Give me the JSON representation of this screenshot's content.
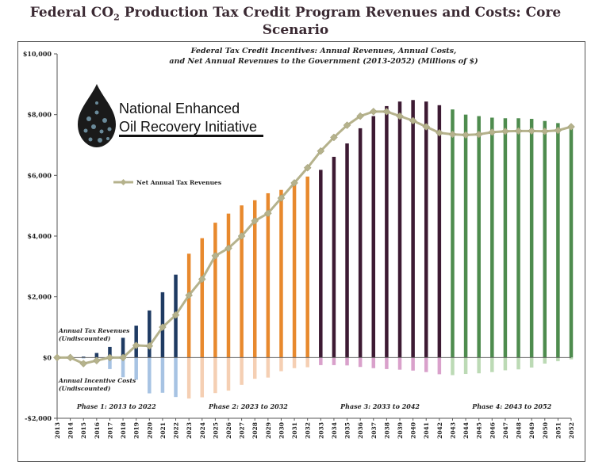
{
  "page_title": {
    "prefix": "Federal CO",
    "sub": "2",
    "suffix": " Production Tax Credit Program Revenues and Costs: Core Scenario"
  },
  "logo": {
    "line1": "National Enhanced",
    "line2": "Oil Recovery Initiative"
  },
  "chart_data": {
    "type": "bar",
    "title_line1": "Federal Tax Credit Incentives: Annual Revenues, Annual Costs,",
    "title_line2": "and Net Annual Revenues to the Government (2013-2052) (Millions of $)",
    "ylim": [
      -2000,
      10000
    ],
    "yticks": [
      -2000,
      0,
      2000,
      4000,
      6000,
      8000,
      10000
    ],
    "ytick_labels": [
      "-$2,000",
      "$0",
      "$2,000",
      "$4,000",
      "$6,000",
      "$8,000",
      "$10,000"
    ],
    "categories": [
      "2013",
      "2014",
      "2015",
      "2016",
      "2017",
      "2018",
      "2019",
      "2020",
      "2021",
      "2022",
      "2023",
      "2024",
      "2025",
      "2026",
      "2027",
      "2028",
      "2029",
      "2030",
      "2031",
      "2032",
      "2033",
      "2034",
      "2035",
      "2036",
      "2037",
      "2038",
      "2039",
      "2040",
      "2041",
      "2042",
      "2043",
      "2044",
      "2045",
      "2046",
      "2047",
      "2048",
      "2049",
      "2050",
      "2051",
      "2052"
    ],
    "series": [
      {
        "name": "Annual Tax Revenues (Undiscounted)",
        "values": [
          0,
          0,
          30,
          150,
          350,
          650,
          1050,
          1550,
          2150,
          2730,
          3420,
          3930,
          4440,
          4740,
          5010,
          5180,
          5410,
          5520,
          5770,
          5960,
          6180,
          6610,
          7050,
          7550,
          7950,
          8280,
          8430,
          8480,
          8430,
          8310,
          8170,
          8000,
          7950,
          7900,
          7880,
          7880,
          7860,
          7790,
          7720,
          7640
        ]
      },
      {
        "name": "Annual Incentive Costs (Undiscounted)",
        "values": [
          0,
          0,
          -30,
          -160,
          -380,
          -650,
          -730,
          -1180,
          -1160,
          -1300,
          -1350,
          -1310,
          -1170,
          -1090,
          -900,
          -700,
          -660,
          -450,
          -350,
          -320,
          -250,
          -250,
          -260,
          -310,
          -350,
          -380,
          -400,
          -430,
          -480,
          -550,
          -580,
          -540,
          -520,
          -480,
          -420,
          -390,
          -330,
          -200,
          -120,
          -60
        ]
      },
      {
        "name": "Net Annual Tax Revenues",
        "values": [
          0,
          0,
          -200,
          -100,
          0,
          0,
          400,
          380,
          1000,
          1400,
          2050,
          2580,
          3350,
          3600,
          4000,
          4500,
          4750,
          5250,
          5750,
          6250,
          6800,
          7250,
          7650,
          7950,
          8100,
          8100,
          7950,
          7800,
          7600,
          7400,
          7350,
          7330,
          7350,
          7420,
          7450,
          7460,
          7460,
          7450,
          7480,
          7600
        ]
      }
    ],
    "colors": {
      "phase1": "#1f3b63",
      "phase1_cost": "#a7c3e3",
      "phase2": "#e8892d",
      "phase2_cost": "#f5cfb3",
      "phase3": "#3d1a33",
      "phase3_cost": "#d9a1cb",
      "phase4": "#4e8c4e",
      "phase4_cost": "#bcdab5",
      "net_line": "#b5b28c"
    },
    "phases": [
      {
        "label": "Phase 1: 2013 to 2022",
        "start": 0,
        "end": 9
      },
      {
        "label": "Phase 2: 2023 to 2032",
        "start": 10,
        "end": 19
      },
      {
        "label": "Phase 3: 2033 to 2042",
        "start": 20,
        "end": 29
      },
      {
        "label": "Phase 4: 2043 to 2052",
        "start": 30,
        "end": 39
      }
    ],
    "legend": {
      "label": "Net Annual Tax Revenues",
      "placement": "left"
    },
    "annotations": {
      "revenues": [
        "Annual Tax Revenues",
        "(Undiscounted)"
      ],
      "costs": [
        "Annual Incentive Costs",
        "(Undiscounted)"
      ]
    }
  }
}
